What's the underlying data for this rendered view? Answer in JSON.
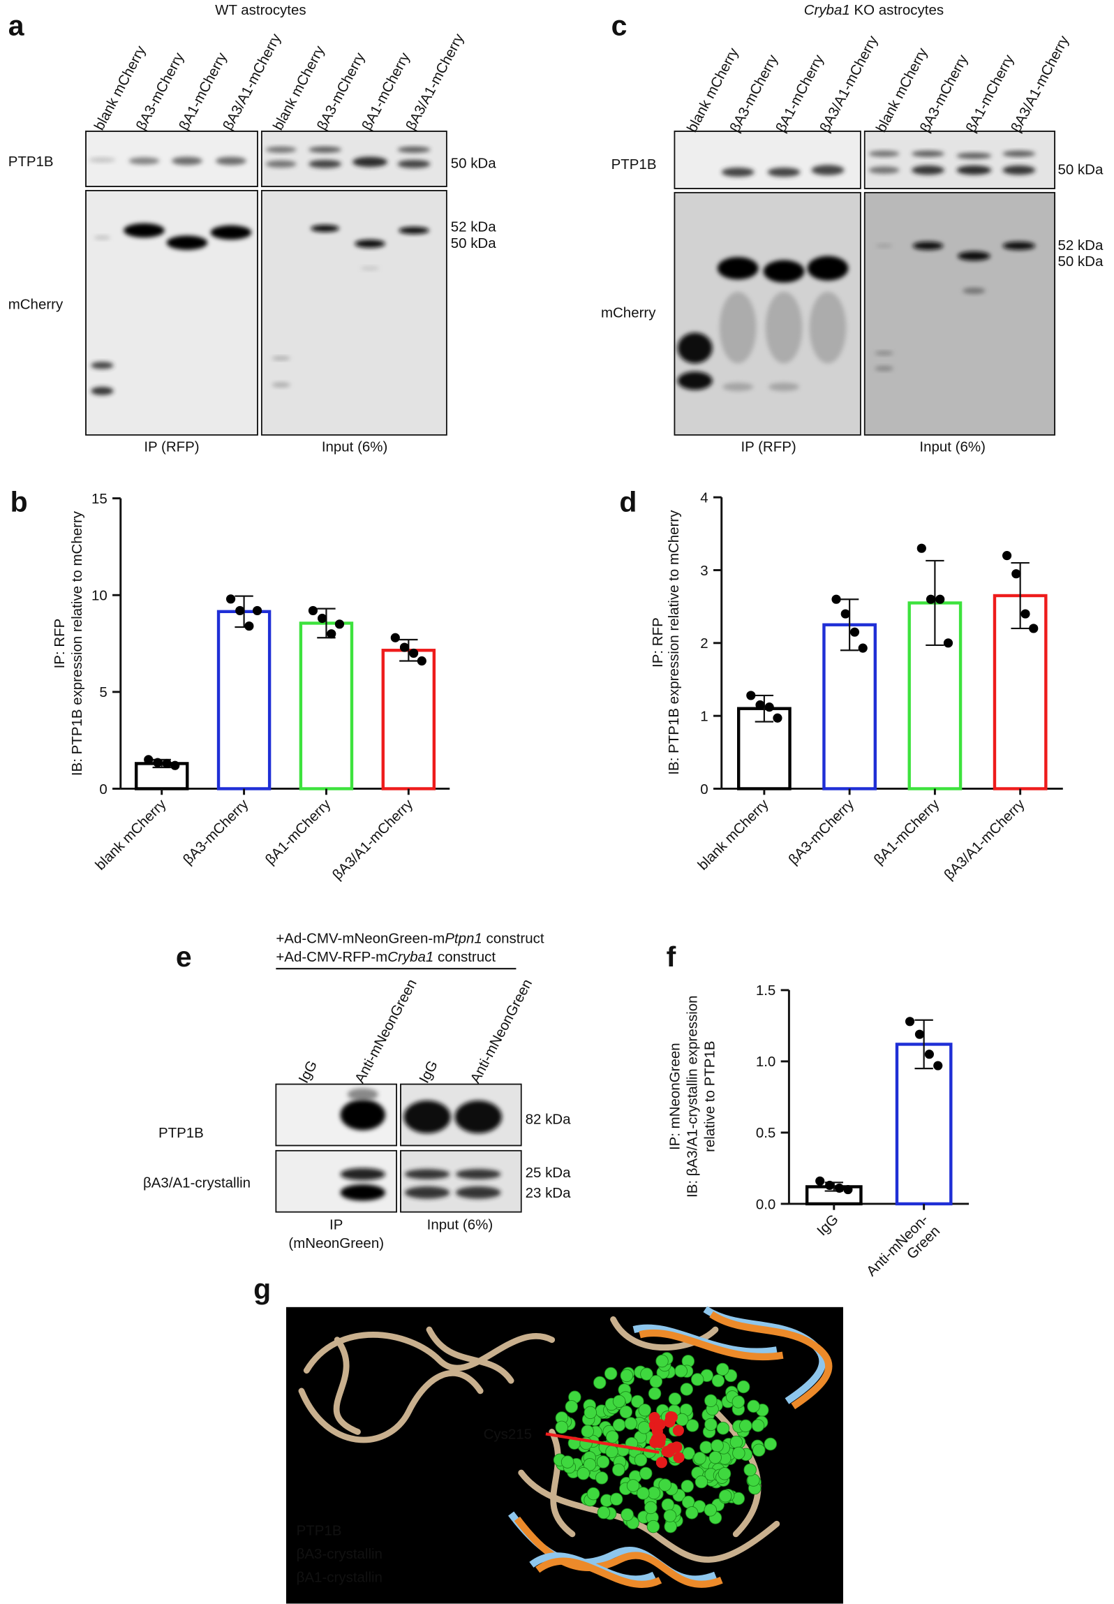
{
  "panel_labels": [
    "a",
    "b",
    "c",
    "d",
    "e",
    "f",
    "g"
  ],
  "blot_a": {
    "title": [
      {
        "text": "WT astrocytes",
        "italic": false
      }
    ],
    "lanes": [
      "blank mCherry",
      "βA3-mCherry",
      "βA1-mCherry",
      "βA3/A1-mCherry",
      "blank mCherry",
      "βA3-mCherry",
      "βA1-mCherry",
      "βA3/A1-mCherry"
    ],
    "rows": [
      "PTP1B",
      "mCherry"
    ],
    "markers": [
      "50 kDa",
      "52 kDa",
      "50 kDa"
    ],
    "groups": [
      [
        "IP (RFP)"
      ],
      [
        "Input (6%)"
      ]
    ]
  },
  "blot_c": {
    "title": [
      {
        "text": "Cryba1",
        "italic": true
      },
      {
        "text": " KO astrocytes",
        "italic": false
      }
    ],
    "lanes": [
      "blank mCherry",
      "βA3-mCherry",
      "βA1-mCherry",
      "βA3/A1-mCherry",
      "blank mCherry",
      "βA3-mCherry",
      "βA1-mCherry",
      "βA3/A1-mCherry"
    ],
    "rows": [
      "PTP1B",
      "mCherry"
    ],
    "markers": [
      "50 kDa",
      "52 kDa",
      "50 kDa"
    ],
    "groups": [
      [
        "IP (RFP)"
      ],
      [
        "Input (6%)"
      ]
    ]
  },
  "blot_e": {
    "construct_lines": [
      [
        {
          "text": "+Ad-CMV-mNeonGreen-m",
          "italic": false
        },
        {
          "text": "Ptpn1",
          "italic": true
        },
        {
          "text": " construct",
          "italic": false
        }
      ],
      [
        {
          "text": "+Ad-CMV-RFP-m",
          "italic": false
        },
        {
          "text": "Cryba1",
          "italic": true
        },
        {
          "text": " construct",
          "italic": false
        }
      ]
    ],
    "lanes": [
      "IgG",
      "Anti-mNeonGreen",
      "IgG",
      "Anti-mNeonGreen"
    ],
    "rows": [
      "PTP1B",
      "βA3/A1-crystallin"
    ],
    "markers": [
      "82 kDa",
      "25 kDa",
      "23 kDa"
    ],
    "groups": [
      [
        "IP",
        "(mNeonGreen)"
      ],
      [
        "Input (6%)"
      ]
    ]
  },
  "structure": {
    "annotation": "Cys215",
    "legend": [
      {
        "name": "PTP1B",
        "color": "#c98a45"
      },
      {
        "name": "βA3-crystallin",
        "color": "#8ec6ec"
      },
      {
        "name": "βA1-crystallin",
        "color": "#ec7d2a"
      }
    ]
  },
  "chart_data": [
    {
      "type": "bar",
      "y_label": [
        "IP: RFP",
        "IB: PTP1B expression relative to mCherry"
      ],
      "categories": [
        "blank mCherry",
        "βA3-mCherry",
        "βA1-mCherry",
        "βA3/A1-mCherry"
      ],
      "values": [
        1.3,
        9.15,
        8.55,
        7.15
      ],
      "errors": [
        0.2,
        0.8,
        0.75,
        0.55
      ],
      "points": [
        [
          1.5,
          1.35,
          1.3,
          1.2
        ],
        [
          9.8,
          9.2,
          8.4,
          9.2
        ],
        [
          9.2,
          8.8,
          8.0,
          8.5
        ],
        [
          7.8,
          7.3,
          7.0,
          6.6
        ]
      ],
      "colors": [
        "#000000",
        "#1f2fd6",
        "#3de23d",
        "#ee1c1c"
      ],
      "ylim": [
        0,
        15
      ],
      "yticks": [
        0,
        5,
        10,
        15
      ]
    },
    {
      "type": "bar",
      "y_label": [
        "IP: RFP",
        "IB: PTP1B expression relative to mCherry"
      ],
      "categories": [
        "blank mCherry",
        "βA3-mCherry",
        "βA1-mCherry",
        "βA3/A1-mCherry"
      ],
      "values": [
        1.1,
        2.25,
        2.55,
        2.65
      ],
      "errors": [
        0.18,
        0.35,
        0.58,
        0.45
      ],
      "points": [
        [
          1.28,
          1.15,
          1.12,
          0.97
        ],
        [
          2.6,
          2.4,
          2.15,
          1.93
        ],
        [
          3.3,
          2.6,
          2.6,
          2.0
        ],
        [
          3.2,
          2.95,
          2.4,
          2.2
        ]
      ],
      "colors": [
        "#000000",
        "#1f2fd6",
        "#3de23d",
        "#ee1c1c"
      ],
      "ylim": [
        0,
        4
      ],
      "yticks": [
        0,
        1,
        2,
        3,
        4
      ]
    },
    {
      "type": "bar",
      "y_label": [
        "IP: mNeonGreen",
        "IB: βA3/A1-crystallin expression",
        "relative to PTP1B"
      ],
      "categories": [
        "IgG",
        [
          "Anti-mNeon-",
          "Green"
        ]
      ],
      "values": [
        0.12,
        1.12
      ],
      "errors": [
        0.03,
        0.17
      ],
      "points": [
        [
          0.16,
          0.13,
          0.11,
          0.1
        ],
        [
          1.28,
          1.19,
          1.05,
          0.97
        ]
      ],
      "colors": [
        "#000000",
        "#1f2fd6"
      ],
      "ylim": [
        0,
        1.5
      ],
      "yticks": [
        {
          "value": 0,
          "label": "0.0"
        },
        0.5,
        {
          "value": 1,
          "label": "1.0"
        },
        1.5
      ]
    }
  ]
}
